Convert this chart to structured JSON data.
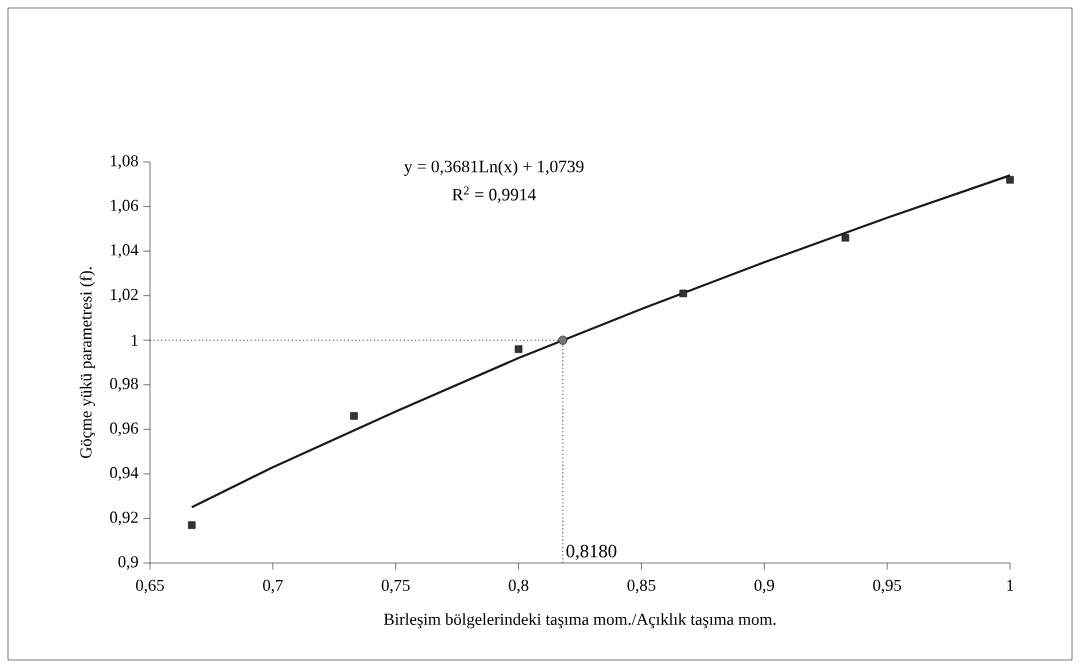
{
  "chart_data": {
    "type": "scatter",
    "xlabel": "Birleşim bölgelerindeki taşıma mom./Açıklık taşıma mom.",
    "ylabel": "Göçme yükü parametresi (f).",
    "series": [
      {
        "color": "#333333",
        "marker": "square",
        "x": [
          0.667,
          0.733,
          0.8,
          0.867,
          0.933,
          1.0
        ],
        "values": [
          0.917,
          0.966,
          0.996,
          1.021,
          1.046,
          1.072
        ]
      },
      {
        "type": "line",
        "color": "#1a1a1a",
        "marker": "none",
        "x": [
          0.667,
          0.7,
          0.75,
          0.8,
          0.85,
          0.9,
          0.95,
          1.0
        ],
        "values": [
          0.925,
          0.943,
          0.968,
          0.992,
          1.014,
          1.035,
          1.055,
          1.074
        ]
      },
      {
        "color": "#777777",
        "marker": "circle",
        "x": [
          0.818
        ],
        "values": [
          1.0
        ]
      }
    ],
    "xlim": [
      0.65,
      1.0
    ],
    "xticks": [
      {
        "value": 0.65,
        "label": "0,65"
      },
      {
        "value": 0.7,
        "label": "0,7"
      },
      {
        "value": 0.75,
        "label": "0,75"
      },
      {
        "value": 0.8,
        "label": "0,8"
      },
      {
        "value": 0.85,
        "label": "0,85"
      },
      {
        "value": 0.9,
        "label": "0,9"
      },
      {
        "value": 0.95,
        "label": "0,95"
      },
      1
    ],
    "ylim": [
      0.9,
      1.08
    ],
    "yticks": [
      {
        "value": 0.9,
        "label": "0,9"
      },
      {
        "value": 0.92,
        "label": "0,92"
      },
      {
        "value": 0.94,
        "label": "0,94"
      },
      {
        "value": 0.96,
        "label": "0,96"
      },
      {
        "value": 0.98,
        "label": "0,98"
      },
      1,
      {
        "value": 1.02,
        "label": "1,02"
      },
      {
        "value": 1.04,
        "label": "1,04"
      },
      {
        "value": 1.06,
        "label": "1,06"
      },
      {
        "value": 1.08,
        "label": "1,08"
      }
    ],
    "ref_lines": [
      {
        "axis": "y",
        "value": 1.0,
        "color": "#333333",
        "line_style": "dotted"
      },
      {
        "axis": "x",
        "value": 0.818,
        "color": "#333333",
        "line_style": "dotted"
      }
    ],
    "annotations": [
      "y = 0,3681Ln(x) + 1,0739",
      "R$^{2}$ = 0,9914",
      {
        "text": "0,8180",
        "x": 0.818,
        "y": 0.9
      }
    ],
    "grid": false
  }
}
